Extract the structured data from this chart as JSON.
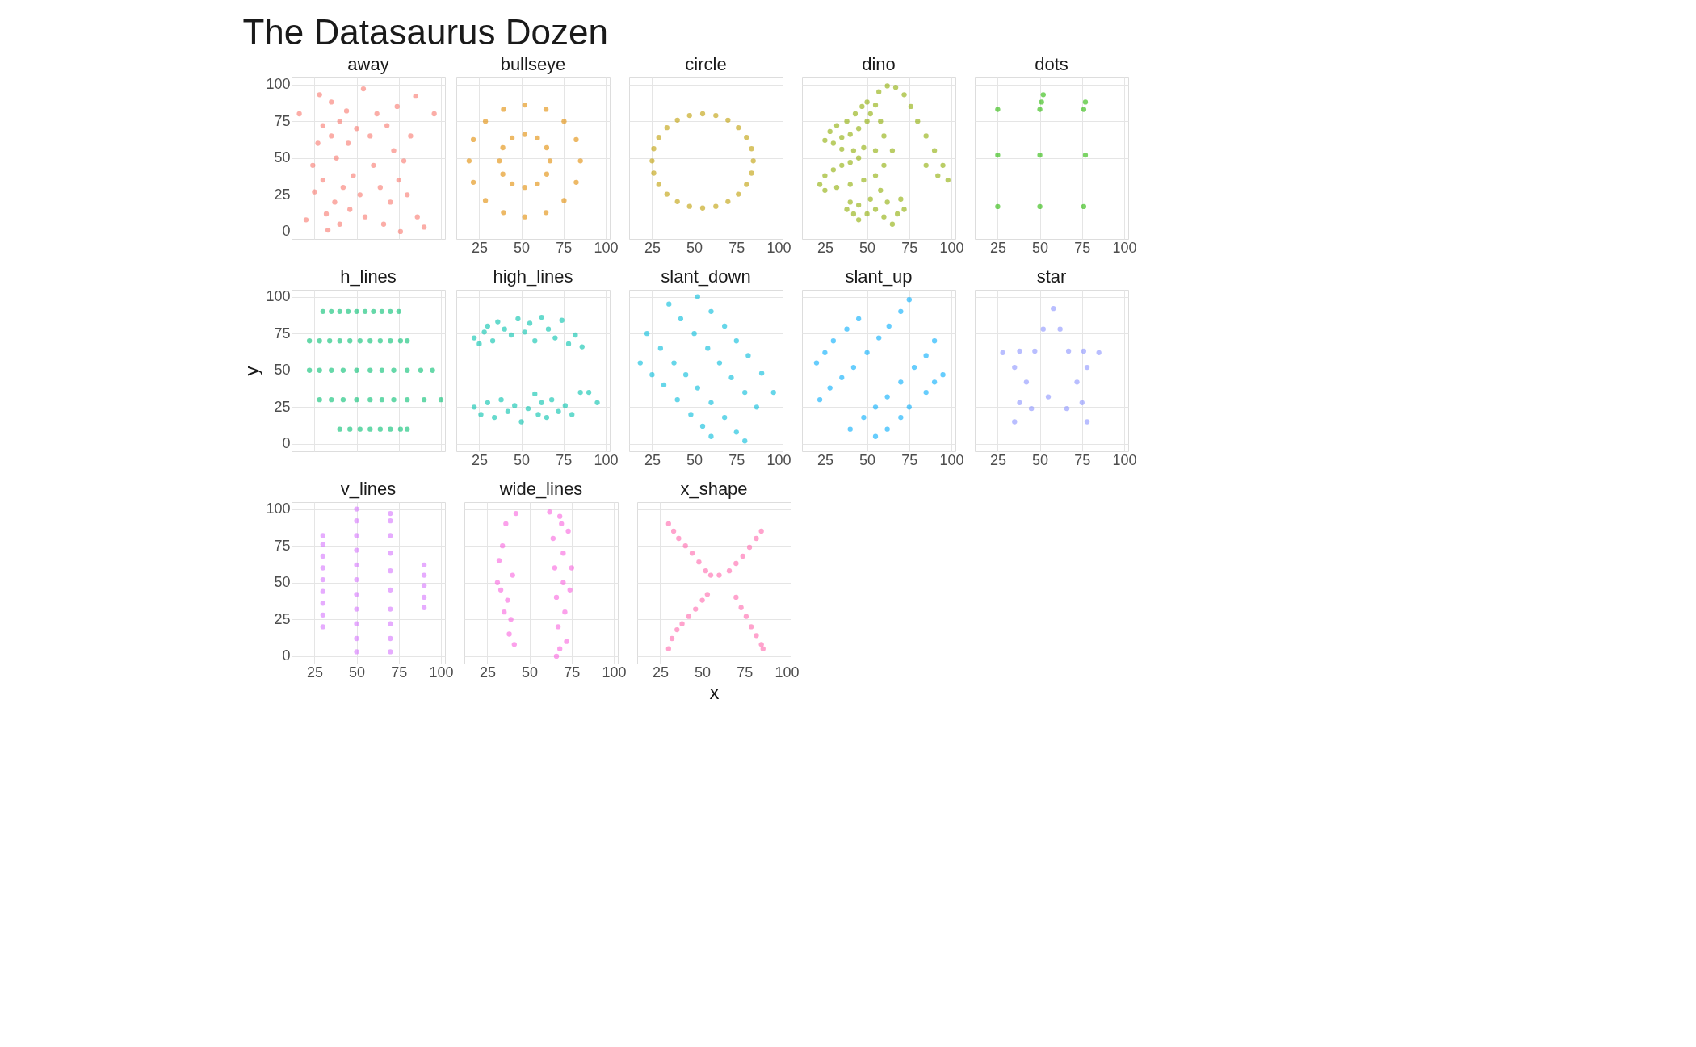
{
  "chart_data": [
    {
      "type": "scatter",
      "title": "away",
      "annotations": [
        "The Datasaurus Dozen"
      ],
      "color": "#F8766D",
      "marker": "circle",
      "grid": true,
      "tick_labels": "y",
      "xlim": [
        11.4,
        102.4
      ],
      "ylim": [
        -5,
        104.7
      ],
      "xticks": [
        25,
        50,
        75,
        100
      ],
      "yticks": [
        0,
        25,
        50,
        75,
        100
      ],
      "x": [
        16,
        20,
        24,
        25,
        27,
        28,
        30,
        30,
        32,
        33,
        35,
        35,
        37,
        38,
        40,
        40,
        42,
        44,
        45,
        46,
        48,
        50,
        52,
        54,
        55,
        58,
        60,
        62,
        64,
        66,
        68,
        70,
        72,
        74,
        75,
        76,
        78,
        80,
        82,
        85,
        86,
        90,
        96
      ],
      "values": [
        80,
        8,
        45,
        27,
        60,
        93,
        72,
        35,
        12,
        1,
        65,
        88,
        20,
        50,
        75,
        5,
        30,
        82,
        60,
        15,
        38,
        70,
        25,
        97,
        10,
        65,
        45,
        80,
        30,
        5,
        72,
        20,
        55,
        85,
        35,
        0,
        48,
        25,
        65,
        92,
        10,
        3,
        80
      ]
    },
    {
      "type": "scatter",
      "title": "bullseye",
      "color": "#E18A00",
      "marker": "circle",
      "grid": true,
      "tick_labels": "x",
      "xlim": [
        11.4,
        102.4
      ],
      "ylim": [
        -5,
        104.7
      ],
      "xticks": [
        25,
        50,
        75,
        100
      ],
      "yticks": [
        0,
        25,
        50,
        75,
        100
      ],
      "x": [
        85,
        82.5,
        75.3,
        64.6,
        52,
        39.4,
        28.7,
        21.5,
        19,
        21.5,
        28.7,
        39.4,
        52,
        64.6,
        75.3,
        82.5,
        67,
        65,
        59.5,
        52,
        44.5,
        39,
        37,
        39,
        44.5,
        52,
        59.5,
        65
      ],
      "values": [
        48,
        62.5,
        74.9,
        83.1,
        86,
        83.1,
        74.9,
        62.5,
        48,
        33.5,
        21.1,
        12.9,
        10,
        12.9,
        21.1,
        33.5,
        48,
        57,
        63.6,
        66,
        63.6,
        57,
        48,
        39,
        32.4,
        30,
        32.4,
        39
      ]
    },
    {
      "type": "scatter",
      "title": "circle",
      "color": "#BE9C00",
      "marker": "circle",
      "grid": true,
      "tick_labels": "x",
      "xlim": [
        11.4,
        102.4
      ],
      "ylim": [
        -5,
        104.7
      ],
      "xticks": [
        25,
        50,
        75,
        100
      ],
      "yticks": [
        0,
        25,
        50,
        75,
        100
      ],
      "x": [
        85,
        84,
        81,
        76.2,
        70,
        62.8,
        55,
        47.2,
        40,
        33.8,
        29,
        26,
        25,
        26,
        29,
        33.8,
        40,
        47.2,
        55,
        62.8,
        70,
        76.2,
        81,
        84
      ],
      "values": [
        48,
        56.3,
        64,
        70.6,
        75.7,
        78.9,
        80,
        78.9,
        75.7,
        70.6,
        64,
        56.3,
        48,
        39.7,
        32,
        25.4,
        20.3,
        17.1,
        16,
        17.1,
        20.3,
        25.4,
        32,
        39.7
      ]
    },
    {
      "type": "scatter",
      "title": "dino",
      "color": "#8CAB00",
      "marker": "circle",
      "grid": true,
      "tick_labels": "x",
      "xlim": [
        11.4,
        102.4
      ],
      "ylim": [
        -5,
        104.7
      ],
      "xticks": [
        25,
        50,
        75,
        100
      ],
      "yticks": [
        0,
        25,
        50,
        75,
        100
      ],
      "x": [
        25,
        28,
        32,
        38,
        43,
        47,
        50,
        55,
        52,
        50,
        45,
        40,
        35,
        30,
        35,
        42,
        48,
        45,
        40,
        35,
        30,
        25,
        22,
        25,
        32,
        40,
        48,
        55,
        57,
        62,
        67,
        72,
        76,
        80,
        85,
        90,
        95,
        98,
        92,
        85,
        40,
        42,
        45,
        50,
        55,
        60,
        65,
        68,
        62,
        58,
        52,
        45,
        38,
        70,
        72,
        60,
        65,
        60,
        58,
        55
      ],
      "values": [
        62,
        68,
        72,
        75,
        80,
        85,
        88,
        86,
        80,
        75,
        70,
        66,
        64,
        60,
        56,
        55,
        57,
        50,
        47,
        45,
        42,
        38,
        32,
        28,
        30,
        32,
        35,
        38,
        95,
        99,
        98,
        93,
        85,
        75,
        65,
        55,
        45,
        35,
        38,
        45,
        20,
        12,
        8,
        12,
        15,
        10,
        5,
        12,
        20,
        28,
        22,
        18,
        15,
        22,
        15,
        45,
        55,
        65,
        75,
        55
      ]
    },
    {
      "type": "scatter",
      "title": "dots",
      "color": "#24B700",
      "marker": "circle",
      "grid": true,
      "tick_labels": "x",
      "xlim": [
        11.4,
        102.4
      ],
      "ylim": [
        -5,
        104.7
      ],
      "xticks": [
        25,
        50,
        75,
        100
      ],
      "yticks": [
        0,
        25,
        50,
        75,
        100
      ],
      "x": [
        25,
        25,
        25,
        50,
        51,
        52,
        50,
        50,
        76,
        77,
        77,
        76
      ],
      "values": [
        83,
        52,
        17,
        83,
        88,
        93,
        52,
        17,
        83,
        88,
        52,
        17
      ]
    },
    {
      "type": "scatter",
      "title": "h_lines",
      "ylabel": "y",
      "color": "#00BE70",
      "marker": "circle",
      "grid": true,
      "tick_labels": "y",
      "xlim": [
        11.4,
        102.4
      ],
      "ylim": [
        -5,
        104.7
      ],
      "xticks": [
        25,
        50,
        75,
        100
      ],
      "yticks": [
        0,
        25,
        50,
        75,
        100
      ],
      "x": [
        30,
        35,
        40,
        45,
        50,
        55,
        60,
        65,
        70,
        75,
        22,
        28,
        34,
        40,
        46,
        52,
        58,
        64,
        70,
        76,
        80,
        22,
        28,
        35,
        42,
        50,
        58,
        65,
        72,
        80,
        88,
        95,
        28,
        35,
        42,
        50,
        58,
        65,
        72,
        80,
        90,
        100,
        40,
        46,
        52,
        58,
        64,
        70,
        76,
        80
      ],
      "values": [
        90,
        90,
        90,
        90,
        90,
        90,
        90,
        90,
        90,
        90,
        70,
        70,
        70,
        70,
        70,
        70,
        70,
        70,
        70,
        70,
        70,
        50,
        50,
        50,
        50,
        50,
        50,
        50,
        50,
        50,
        50,
        50,
        30,
        30,
        30,
        30,
        30,
        30,
        30,
        30,
        30,
        30,
        10,
        10,
        10,
        10,
        10,
        10,
        10,
        10
      ]
    },
    {
      "type": "scatter",
      "title": "high_lines",
      "color": "#00C1AB",
      "marker": "circle",
      "grid": true,
      "tick_labels": "x",
      "xlim": [
        11.4,
        102.4
      ],
      "ylim": [
        -5,
        104.7
      ],
      "xticks": [
        25,
        50,
        75,
        100
      ],
      "yticks": [
        0,
        25,
        50,
        75,
        100
      ],
      "x": [
        22,
        25,
        28,
        30,
        33,
        36,
        40,
        44,
        48,
        52,
        55,
        58,
        62,
        66,
        70,
        74,
        78,
        82,
        86,
        22,
        26,
        30,
        34,
        38,
        42,
        46,
        50,
        54,
        58,
        60,
        62,
        65,
        68,
        72,
        76,
        80,
        85,
        90,
        95
      ],
      "values": [
        72,
        68,
        76,
        80,
        70,
        83,
        78,
        74,
        85,
        76,
        82,
        70,
        86,
        78,
        72,
        84,
        68,
        74,
        66,
        25,
        20,
        28,
        18,
        30,
        22,
        26,
        15,
        24,
        34,
        20,
        28,
        18,
        30,
        22,
        26,
        20,
        35,
        35,
        28
      ]
    },
    {
      "type": "scatter",
      "title": "slant_down",
      "color": "#00BBDA",
      "marker": "circle",
      "grid": true,
      "tick_labels": "x",
      "xlim": [
        11.4,
        102.4
      ],
      "ylim": [
        -5,
        104.7
      ],
      "xticks": [
        25,
        50,
        75,
        100
      ],
      "yticks": [
        0,
        25,
        50,
        75,
        100
      ],
      "x": [
        18,
        25,
        32,
        40,
        48,
        55,
        60,
        22,
        30,
        38,
        45,
        52,
        60,
        68,
        75,
        80,
        35,
        42,
        50,
        58,
        65,
        72,
        80,
        87,
        52,
        60,
        68,
        75,
        82,
        90,
        97
      ],
      "values": [
        55,
        47,
        40,
        30,
        20,
        12,
        5,
        75,
        65,
        55,
        47,
        38,
        28,
        18,
        8,
        2,
        95,
        85,
        75,
        65,
        55,
        45,
        35,
        25,
        100,
        90,
        80,
        70,
        60,
        48,
        35
      ]
    },
    {
      "type": "scatter",
      "title": "slant_up",
      "color": "#00ACFC",
      "marker": "circle",
      "grid": true,
      "tick_labels": "x",
      "xlim": [
        11.4,
        102.4
      ],
      "ylim": [
        -5,
        104.7
      ],
      "xticks": [
        25,
        50,
        75,
        100
      ],
      "yticks": [
        0,
        25,
        50,
        75,
        100
      ],
      "x": [
        22,
        28,
        35,
        42,
        50,
        57,
        63,
        70,
        75,
        20,
        25,
        30,
        38,
        45,
        40,
        48,
        55,
        62,
        70,
        78,
        85,
        90,
        55,
        62,
        70,
        75,
        85,
        90,
        95
      ],
      "values": [
        30,
        38,
        45,
        52,
        62,
        72,
        80,
        90,
        98,
        55,
        62,
        70,
        78,
        85,
        10,
        18,
        25,
        32,
        42,
        52,
        60,
        70,
        5,
        10,
        18,
        25,
        35,
        42,
        47
      ]
    },
    {
      "type": "scatter",
      "title": "star",
      "color": "#8B93FF",
      "marker": "circle",
      "grid": true,
      "tick_labels": "x",
      "xlim": [
        11.4,
        102.4
      ],
      "ylim": [
        -5,
        104.7
      ],
      "xticks": [
        25,
        50,
        75,
        100
      ],
      "yticks": [
        0,
        25,
        50,
        75,
        100
      ],
      "x": [
        58,
        62,
        67,
        76,
        85,
        78,
        72,
        75,
        78,
        66,
        55,
        45,
        35,
        38,
        42,
        35,
        28,
        38,
        47,
        52
      ],
      "values": [
        92,
        78,
        63,
        63,
        62,
        52,
        42,
        28,
        15,
        24,
        32,
        24,
        15,
        28,
        42,
        52,
        62,
        63,
        63,
        78
      ]
    },
    {
      "type": "scatter",
      "title": "v_lines",
      "color": "#D575FE",
      "marker": "circle",
      "grid": true,
      "xlim": [
        11.4,
        102.4
      ],
      "ylim": [
        -5,
        104.7
      ],
      "xticks": [
        25,
        50,
        75,
        100
      ],
      "yticks": [
        0,
        25,
        50,
        75,
        100
      ],
      "x": [
        30,
        30,
        30,
        30,
        30,
        30,
        30,
        30,
        30,
        50,
        50,
        50,
        50,
        50,
        50,
        50,
        50,
        50,
        50,
        50,
        70,
        70,
        70,
        70,
        70,
        70,
        70,
        70,
        70,
        70,
        90,
        90,
        90,
        90,
        90
      ],
      "values": [
        20,
        28,
        36,
        44,
        52,
        60,
        68,
        76,
        82,
        3,
        12,
        22,
        32,
        42,
        52,
        62,
        72,
        82,
        92,
        100,
        3,
        12,
        22,
        32,
        45,
        58,
        70,
        82,
        92,
        97,
        33,
        40,
        48,
        55,
        62
      ]
    },
    {
      "type": "scatter",
      "title": "wide_lines",
      "color": "#F962DD",
      "marker": "circle",
      "grid": true,
      "tick_labels": "x",
      "xlim": [
        11.4,
        102.4
      ],
      "ylim": [
        -5,
        104.7
      ],
      "xticks": [
        25,
        50,
        75,
        100
      ],
      "yticks": [
        0,
        25,
        50,
        75,
        100
      ],
      "x": [
        32,
        33,
        35,
        36,
        38,
        40,
        41,
        42,
        34,
        37,
        39,
        31,
        62,
        64,
        65,
        66,
        67,
        68,
        69,
        70,
        70,
        71,
        72,
        73,
        74,
        75,
        66,
        68
      ],
      "values": [
        65,
        45,
        30,
        90,
        15,
        55,
        8,
        97,
        75,
        38,
        25,
        50,
        98,
        80,
        60,
        40,
        20,
        5,
        90,
        70,
        50,
        30,
        10,
        85,
        45,
        60,
        0,
        95
      ]
    },
    {
      "type": "scatter",
      "title": "x_shape",
      "xlabel": "x",
      "color": "#FF65AC",
      "marker": "circle",
      "grid": true,
      "tick_labels": "x",
      "xlim": [
        11.4,
        102.4
      ],
      "ylim": [
        -5,
        104.7
      ],
      "xticks": [
        25,
        50,
        75,
        100
      ],
      "yticks": [
        0,
        25,
        50,
        75,
        100
      ],
      "x": [
        30,
        33,
        36,
        40,
        44,
        48,
        52,
        55,
        85,
        82,
        78,
        74,
        70,
        66,
        60,
        30,
        32,
        35,
        38,
        42,
        46,
        50,
        53,
        70,
        73,
        76,
        79,
        82,
        85,
        86
      ],
      "values": [
        90,
        85,
        80,
        75,
        70,
        64,
        58,
        55,
        85,
        80,
        74,
        68,
        63,
        58,
        55,
        5,
        12,
        18,
        22,
        27,
        32,
        38,
        42,
        40,
        33,
        27,
        20,
        14,
        8,
        5
      ]
    }
  ]
}
